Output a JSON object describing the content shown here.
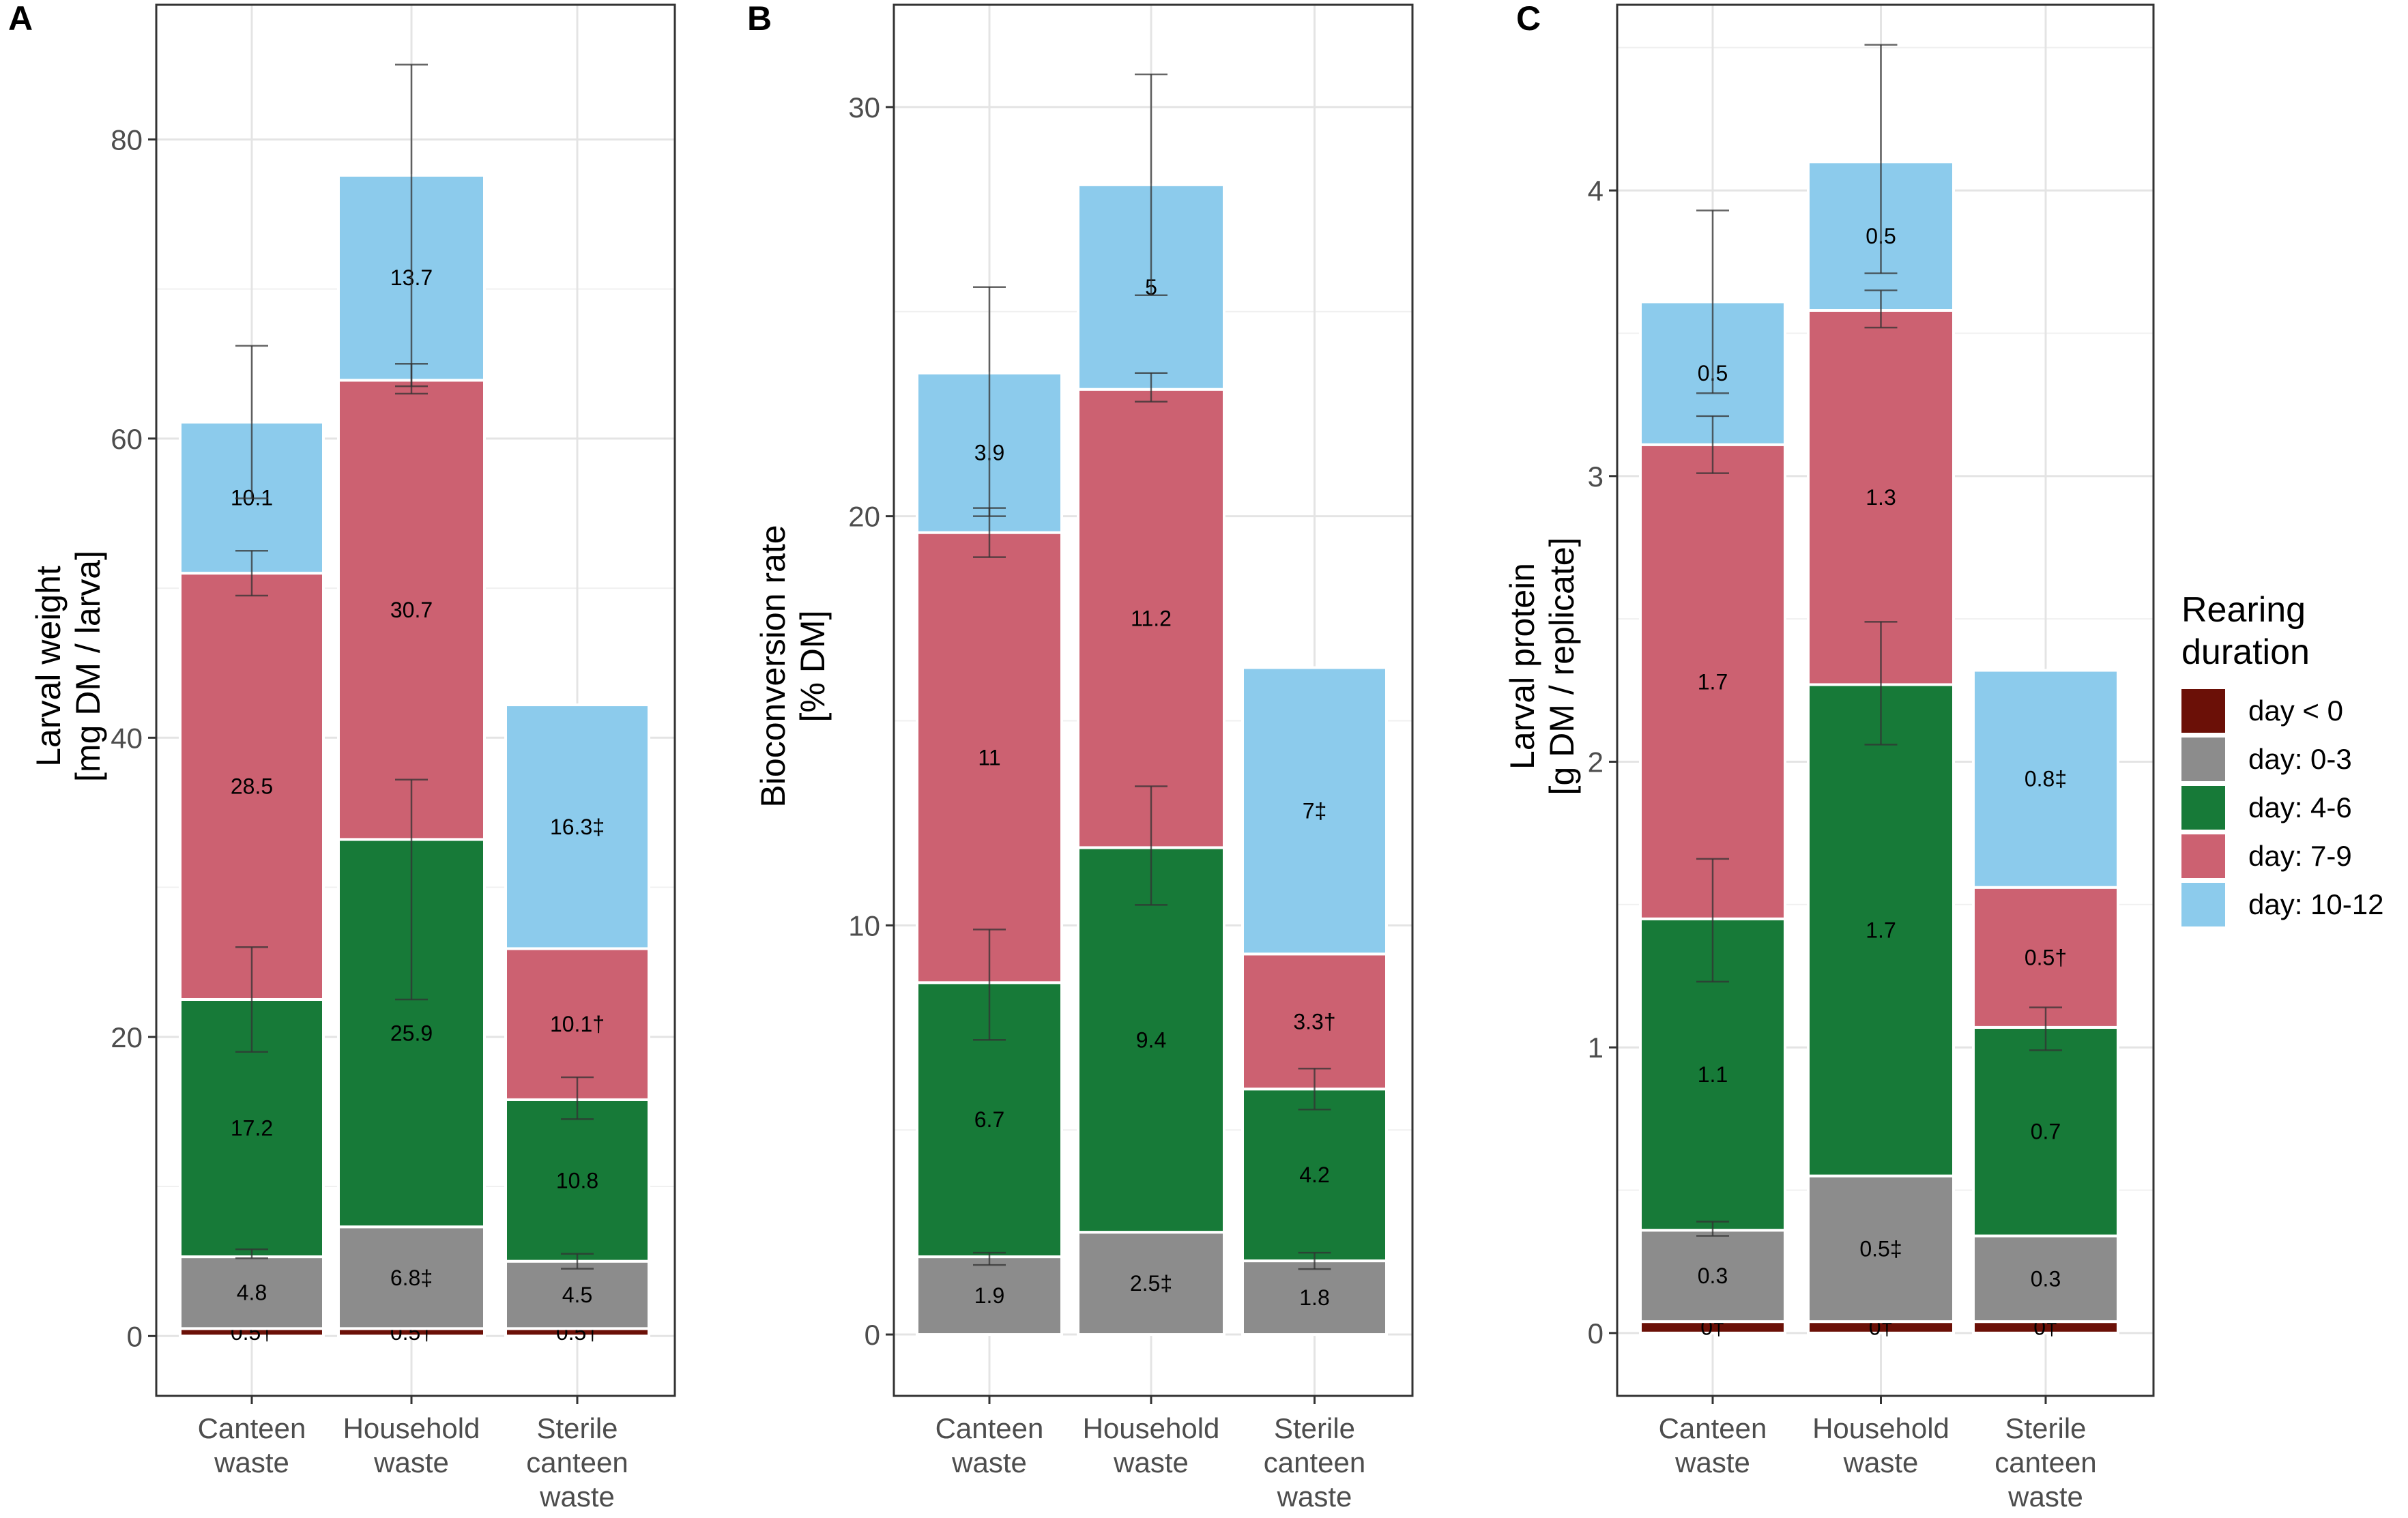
{
  "colors": {
    "day < 0": "#6b1007",
    "day: 0-3": "#8c8c8c",
    "day: 4-6": "#177a38",
    "day: 7-9": "#cc6171",
    "day: 10-12": "#8ccbec"
  },
  "legend": {
    "title_lines": [
      "Rearing",
      "duration"
    ],
    "items": [
      "day < 0",
      "day: 0-3",
      "day: 4-6",
      "day: 7-9",
      "day: 10-12"
    ]
  },
  "chart_data": [
    {
      "panel": "A",
      "type": "bar",
      "stacked": true,
      "ylabel_lines": [
        "Larval weight",
        "[mg DM / larva]"
      ],
      "ylim": [
        -4,
        89
      ],
      "yticks": [
        0,
        20,
        40,
        60,
        80
      ],
      "categories": [
        [
          "Canteen",
          "waste"
        ],
        [
          "Household",
          "waste"
        ],
        [
          "Sterile",
          "canteen",
          "waste"
        ]
      ],
      "series": [
        {
          "name": "day < 0",
          "values": [
            0.5,
            0.5,
            0.5
          ],
          "labels": [
            "0.5†",
            "0.5†",
            "0.5†"
          ]
        },
        {
          "name": "day: 0-3",
          "values": [
            4.8,
            6.8,
            4.5
          ],
          "labels": [
            "4.8",
            "6.8‡",
            "4.5"
          ]
        },
        {
          "name": "day: 4-6",
          "values": [
            17.2,
            25.9,
            10.8
          ],
          "labels": [
            "17.2",
            "25.9",
            "10.8"
          ]
        },
        {
          "name": "day: 7-9",
          "values": [
            28.5,
            30.7,
            10.1
          ],
          "labels": [
            "28.5",
            "30.7",
            "10.1†"
          ]
        },
        {
          "name": "day: 10-12",
          "values": [
            10.1,
            13.7,
            16.3
          ],
          "labels": [
            "10.1",
            "13.7",
            "16.3‡"
          ]
        }
      ],
      "errorbars": [
        [
          [
            5.2,
            5.8
          ],
          [
            19,
            26
          ],
          [
            49.5,
            52.5
          ],
          [
            56,
            66.2
          ]
        ],
        [
          [
            22.5,
            37.2
          ],
          [
            63,
            65
          ],
          [
            63.5,
            85
          ]
        ],
        [
          [
            4.5,
            5.5
          ],
          [
            14.5,
            17.3
          ]
        ]
      ]
    },
    {
      "panel": "B",
      "type": "bar",
      "stacked": true,
      "ylabel_lines": [
        "Bioconversion rate",
        "[% DM]"
      ],
      "ylim": [
        -1.5,
        32.5
      ],
      "yticks": [
        0,
        10,
        20,
        30
      ],
      "categories": [
        [
          "Canteen",
          "waste"
        ],
        [
          "Household",
          "waste"
        ],
        [
          "Sterile",
          "canteen",
          "waste"
        ]
      ],
      "series": [
        {
          "name": "day: 0-3",
          "values": [
            1.9,
            2.5,
            1.8
          ],
          "labels": [
            "1.9",
            "2.5‡",
            "1.8"
          ]
        },
        {
          "name": "day: 4-6",
          "values": [
            6.7,
            9.4,
            4.2
          ],
          "labels": [
            "6.7",
            "9.4",
            "4.2"
          ]
        },
        {
          "name": "day: 7-9",
          "values": [
            11,
            11.2,
            3.3
          ],
          "labels": [
            "11",
            "11.2",
            "3.3†"
          ]
        },
        {
          "name": "day: 10-12",
          "values": [
            3.9,
            5,
            7
          ],
          "labels": [
            "3.9",
            "5",
            "7‡"
          ]
        }
      ],
      "errorbars": [
        [
          [
            1.7,
            2.0
          ],
          [
            7.2,
            9.9
          ],
          [
            19.0,
            20.2
          ],
          [
            20,
            25.6
          ]
        ],
        [
          [
            10.5,
            13.4
          ],
          [
            22.8,
            23.5
          ],
          [
            25.4,
            30.8
          ]
        ],
        [
          [
            1.6,
            2.0
          ],
          [
            5.5,
            6.5
          ]
        ]
      ]
    },
    {
      "panel": "C",
      "type": "bar",
      "stacked": true,
      "ylabel_lines": [
        "Larval protein",
        "[g DM / replicate]"
      ],
      "ylim": [
        -0.22,
        4.65
      ],
      "yticks": [
        0,
        1,
        2,
        3,
        4
      ],
      "categories": [
        [
          "Canteen",
          "waste"
        ],
        [
          "Household",
          "waste"
        ],
        [
          "Sterile",
          "canteen",
          "waste"
        ]
      ],
      "series": [
        {
          "name": "day < 0",
          "values": [
            0.04,
            0.04,
            0.04
          ],
          "labels": [
            "0†",
            "0†",
            "0†"
          ]
        },
        {
          "name": "day: 0-3",
          "values": [
            0.32,
            0.51,
            0.3
          ],
          "labels": [
            "0.3",
            "0.5‡",
            "0.3"
          ]
        },
        {
          "name": "day: 4-6",
          "values": [
            1.09,
            1.72,
            0.73
          ],
          "labels": [
            "1.1",
            "1.7",
            "0.7"
          ]
        },
        {
          "name": "day: 7-9",
          "values": [
            1.66,
            1.31,
            0.49
          ],
          "labels": [
            "1.7",
            "1.3",
            "0.5†"
          ]
        },
        {
          "name": "day: 10-12",
          "values": [
            0.5,
            0.52,
            0.76
          ],
          "labels": [
            "0.5",
            "0.5",
            "0.8‡"
          ]
        }
      ],
      "errorbars": [
        [
          [
            0.34,
            0.39
          ],
          [
            1.23,
            1.66
          ],
          [
            3.01,
            3.21
          ],
          [
            3.29,
            3.93
          ]
        ],
        [
          [
            2.06,
            2.49
          ],
          [
            3.52,
            3.65
          ],
          [
            3.71,
            4.51
          ]
        ],
        [
          [
            0.99,
            1.14
          ]
        ]
      ]
    }
  ]
}
